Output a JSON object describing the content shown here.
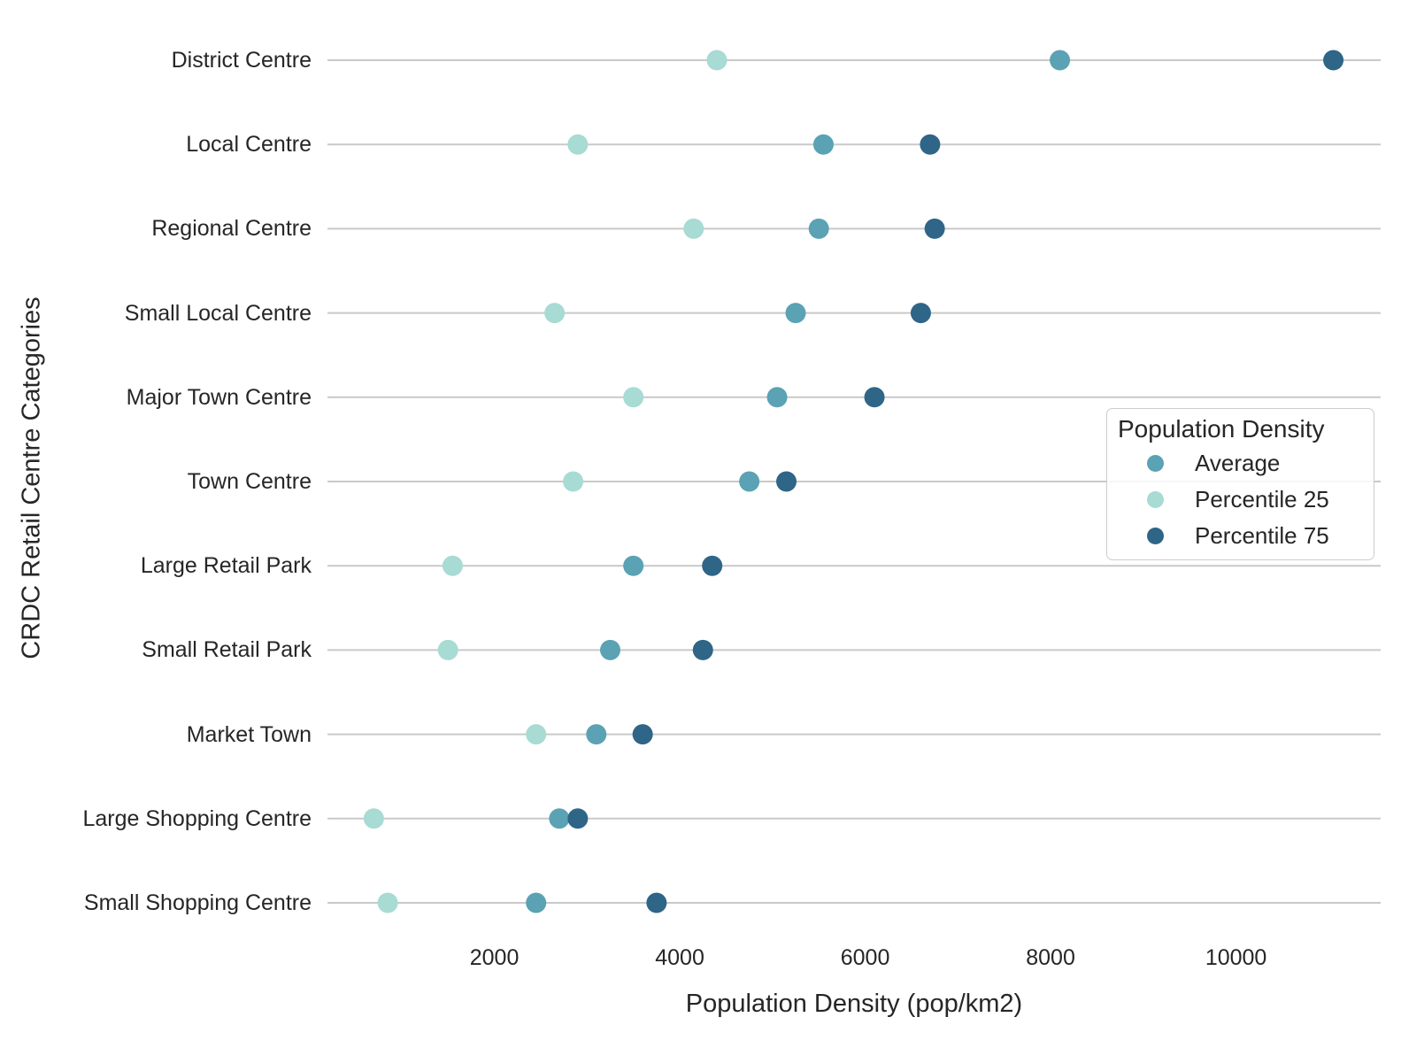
{
  "chart_data": {
    "type": "scatter",
    "title": "",
    "xlabel": "Population Density (pop/km2)",
    "ylabel": "CRDC Retail Centre Categories",
    "categories": [
      "District Centre",
      "Local Centre",
      "Regional Centre",
      "Small Local Centre",
      "Major Town Centre",
      "Town Centre",
      "Large Retail Park",
      "Small Retail Park",
      "Market Town",
      "Large Shopping Centre",
      "Small Shopping Centre"
    ],
    "series": [
      {
        "name": "Average",
        "color": "#5aa2b4",
        "values": [
          8100,
          5550,
          5500,
          5250,
          5050,
          4750,
          3500,
          3250,
          3100,
          2700,
          2450
        ]
      },
      {
        "name": "Percentile 25",
        "color": "#a7dbd3",
        "values": [
          4400,
          2900,
          4150,
          2650,
          3500,
          2850,
          1550,
          1500,
          2450,
          700,
          850
        ]
      },
      {
        "name": "Percentile 75",
        "color": "#2f6587",
        "values": [
          11050,
          6700,
          6750,
          6600,
          6100,
          5150,
          4350,
          4250,
          3600,
          2900,
          3750
        ]
      }
    ],
    "xlim": [
      200,
      11560
    ],
    "xticks": [
      2000,
      4000,
      6000,
      8000,
      10000
    ],
    "grid": "horizontal-category-lines-only",
    "legend": {
      "title": "Population Density",
      "position": "right-middle",
      "items": [
        "Average",
        "Percentile 25",
        "Percentile 75"
      ]
    }
  }
}
